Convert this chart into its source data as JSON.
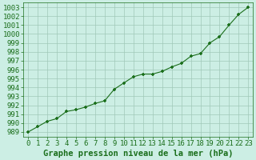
{
  "x": [
    0,
    1,
    2,
    3,
    4,
    5,
    6,
    7,
    8,
    9,
    10,
    11,
    12,
    13,
    14,
    15,
    16,
    17,
    18,
    19,
    20,
    21,
    22,
    23
  ],
  "y": [
    989.0,
    989.6,
    990.2,
    990.5,
    991.3,
    991.5,
    991.8,
    992.2,
    992.5,
    993.8,
    994.5,
    995.2,
    995.5,
    995.5,
    995.8,
    996.3,
    996.7,
    997.5,
    997.8,
    999.0,
    999.7,
    1001.0,
    1002.2,
    1003.0
  ],
  "line_color": "#1a6e1a",
  "marker": "P",
  "marker_size": 3.5,
  "background_color": "#cceee4",
  "grid_color": "#a0c8b8",
  "xlabel": "Graphe pression niveau de la mer (hPa)",
  "xlabel_fontsize": 7.5,
  "ylabel_fontsize": 6.5,
  "tick_fontsize": 6.5,
  "ylim": [
    988.5,
    1003.5
  ],
  "yticks": [
    989,
    990,
    991,
    992,
    993,
    994,
    995,
    996,
    997,
    998,
    999,
    1000,
    1001,
    1002,
    1003
  ],
  "xlim": [
    -0.5,
    23.5
  ],
  "xticks": [
    0,
    1,
    2,
    3,
    4,
    5,
    6,
    7,
    8,
    9,
    10,
    11,
    12,
    13,
    14,
    15,
    16,
    17,
    18,
    19,
    20,
    21,
    22,
    23
  ]
}
